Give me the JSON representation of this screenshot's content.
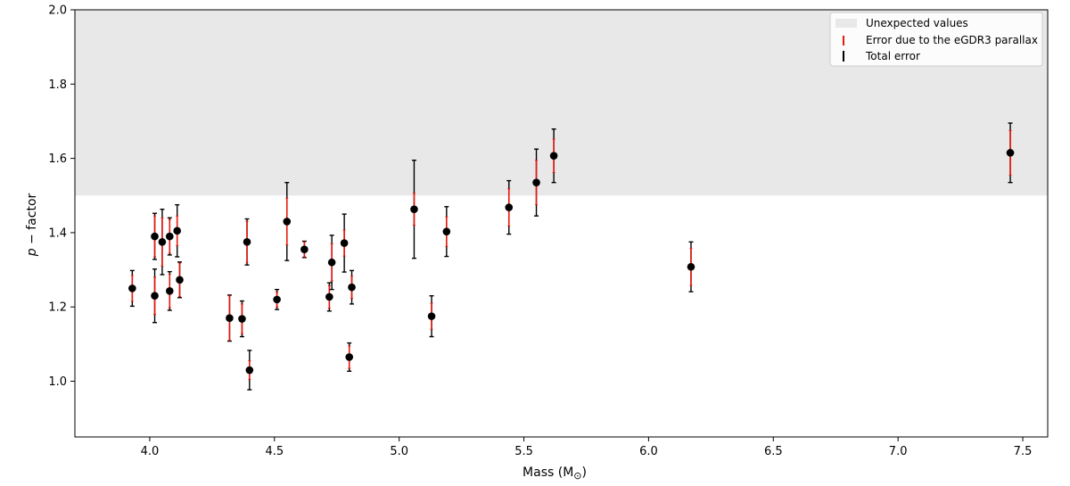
{
  "chart_data": {
    "type": "scatter",
    "xlabel": "Mass (M",
    "xlabel_sub": "⊙",
    "xlabel_close": ")",
    "ylabel_italic": "p",
    "ylabel_rest": " − factor",
    "xlim": [
      3.7,
      7.6
    ],
    "ylim": [
      0.85,
      2.0
    ],
    "xticks": [
      4.0,
      4.5,
      5.0,
      5.5,
      6.0,
      6.5,
      7.0,
      7.5
    ],
    "xtick_labels": [
      "4.0",
      "4.5",
      "5.0",
      "5.5",
      "6.0",
      "6.5",
      "7.0",
      "7.5"
    ],
    "yticks": [
      1.0,
      1.2,
      1.4,
      1.6,
      1.8,
      2.0
    ],
    "ytick_labels": [
      "1.0",
      "1.2",
      "1.4",
      "1.6",
      "1.8",
      "2.0"
    ],
    "grid": false,
    "shaded_region": {
      "y_from": 1.5,
      "y_to": 2.0,
      "color": "#e8e8e8",
      "label": "Unexpected values"
    },
    "legend": {
      "placement": "top-right",
      "entries": [
        {
          "label": "Unexpected values",
          "kind": "patch",
          "color": "#e8e8e8"
        },
        {
          "label": "Error due to the eGDR3 parallax",
          "kind": "errorbar",
          "color": "#e8190e"
        },
        {
          "label": "Total error",
          "kind": "errorbar",
          "color": "#000000"
        }
      ]
    },
    "colors": {
      "point": "#000000",
      "parallax_error": "#e8190e",
      "total_error": "#000000"
    },
    "points": [
      {
        "x": 3.93,
        "y": 1.25,
        "err_parallax": 0.035,
        "err_total": 0.048
      },
      {
        "x": 4.02,
        "y": 1.39,
        "err_parallax": 0.055,
        "err_total": 0.062
      },
      {
        "x": 4.02,
        "y": 1.23,
        "err_parallax": 0.05,
        "err_total": 0.072
      },
      {
        "x": 4.05,
        "y": 1.375,
        "err_parallax": 0.065,
        "err_total": 0.088
      },
      {
        "x": 4.08,
        "y": 1.39,
        "err_parallax": 0.045,
        "err_total": 0.05
      },
      {
        "x": 4.08,
        "y": 1.243,
        "err_parallax": 0.045,
        "err_total": 0.052
      },
      {
        "x": 4.11,
        "y": 1.405,
        "err_parallax": 0.04,
        "err_total": 0.07
      },
      {
        "x": 4.12,
        "y": 1.273,
        "err_parallax": 0.045,
        "err_total": 0.048
      },
      {
        "x": 4.32,
        "y": 1.17,
        "err_parallax": 0.06,
        "err_total": 0.062
      },
      {
        "x": 4.37,
        "y": 1.168,
        "err_parallax": 0.04,
        "err_total": 0.048
      },
      {
        "x": 4.39,
        "y": 1.375,
        "err_parallax": 0.055,
        "err_total": 0.062
      },
      {
        "x": 4.4,
        "y": 1.03,
        "err_parallax": 0.025,
        "err_total": 0.053
      },
      {
        "x": 4.51,
        "y": 1.22,
        "err_parallax": 0.02,
        "err_total": 0.027
      },
      {
        "x": 4.55,
        "y": 1.43,
        "err_parallax": 0.063,
        "err_total": 0.105
      },
      {
        "x": 4.62,
        "y": 1.355,
        "err_parallax": 0.02,
        "err_total": 0.022
      },
      {
        "x": 4.72,
        "y": 1.227,
        "err_parallax": 0.03,
        "err_total": 0.038
      },
      {
        "x": 4.73,
        "y": 1.32,
        "err_parallax": 0.05,
        "err_total": 0.073
      },
      {
        "x": 4.78,
        "y": 1.372,
        "err_parallax": 0.035,
        "err_total": 0.078
      },
      {
        "x": 4.8,
        "y": 1.065,
        "err_parallax": 0.03,
        "err_total": 0.038
      },
      {
        "x": 4.81,
        "y": 1.253,
        "err_parallax": 0.03,
        "err_total": 0.045
      },
      {
        "x": 5.06,
        "y": 1.463,
        "err_parallax": 0.043,
        "err_total": 0.132
      },
      {
        "x": 5.13,
        "y": 1.175,
        "err_parallax": 0.035,
        "err_total": 0.055
      },
      {
        "x": 5.19,
        "y": 1.403,
        "err_parallax": 0.04,
        "err_total": 0.067
      },
      {
        "x": 5.44,
        "y": 1.468,
        "err_parallax": 0.05,
        "err_total": 0.072
      },
      {
        "x": 5.55,
        "y": 1.535,
        "err_parallax": 0.06,
        "err_total": 0.09
      },
      {
        "x": 5.62,
        "y": 1.607,
        "err_parallax": 0.045,
        "err_total": 0.072
      },
      {
        "x": 6.17,
        "y": 1.308,
        "err_parallax": 0.05,
        "err_total": 0.067
      },
      {
        "x": 7.45,
        "y": 1.615,
        "err_parallax": 0.06,
        "err_total": 0.08
      }
    ]
  }
}
